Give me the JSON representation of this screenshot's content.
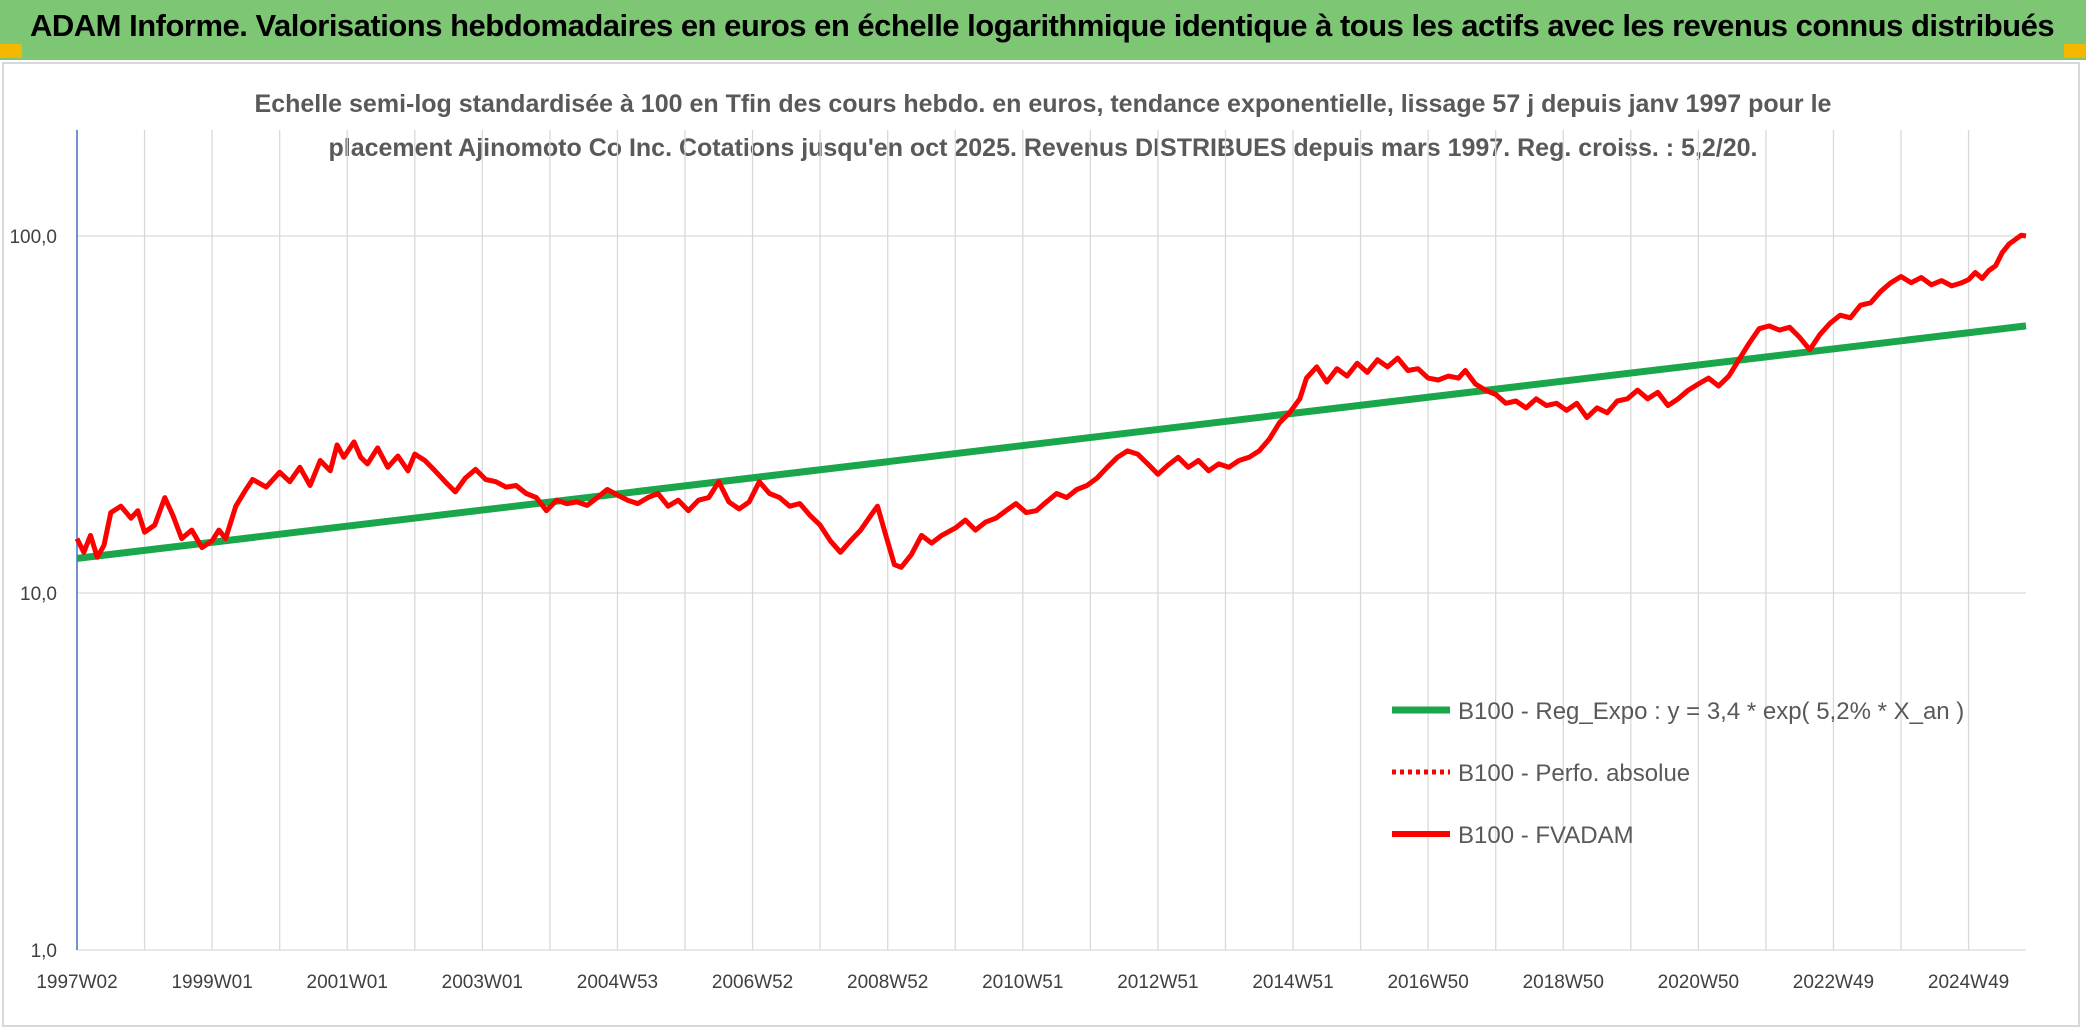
{
  "header": {
    "title": "ADAM Informe. Valorisations hebdomadaires en euros en échelle logarithmique identique à tous les actifs avec les revenus connus distribués"
  },
  "colors": {
    "header_bg": "#7dc774",
    "corner": "#f5b800",
    "regression": "#1aa64b",
    "fvadam": "#ff0000",
    "grid": "#d9d9d9"
  },
  "chart_data": {
    "type": "line",
    "y_scale": "log",
    "title_lines": [
      "Echelle semi-log standardisée à 100 en Tfin des cours hebdo. en euros, tendance exponentielle, lissage 57 j depuis janv 1997 pour le",
      "placement Ajinomoto Co Inc. Cotations jusqu'en oct 2025. Revenus DISTRIBUES depuis mars 1997. Reg. croiss. : 5,2/20."
    ],
    "ylim": [
      1,
      200
    ],
    "x_range_years": [
      1997.0,
      2025.85
    ],
    "y_ticks": [
      {
        "value": 1,
        "label": "1,0"
      },
      {
        "value": 10,
        "label": "10,0"
      },
      {
        "value": 100,
        "label": "100,0"
      }
    ],
    "x_ticks": [
      {
        "t": 1997.0,
        "label": "1997W02"
      },
      {
        "t": 1999.0,
        "label": "1999W01"
      },
      {
        "t": 2001.0,
        "label": "2001W01"
      },
      {
        "t": 2003.0,
        "label": "2003W01"
      },
      {
        "t": 2005.0,
        "label": "2004W53"
      },
      {
        "t": 2007.0,
        "label": "2006W52"
      },
      {
        "t": 2009.0,
        "label": "2008W52"
      },
      {
        "t": 2011.0,
        "label": "2010W51"
      },
      {
        "t": 2013.0,
        "label": "2012W51"
      },
      {
        "t": 2015.0,
        "label": "2014W51"
      },
      {
        "t": 2017.0,
        "label": "2016W50"
      },
      {
        "t": 2019.0,
        "label": "2018W50"
      },
      {
        "t": 2021.0,
        "label": "2020W50"
      },
      {
        "t": 2023.0,
        "label": "2022W49"
      },
      {
        "t": 2025.0,
        "label": "2024W49"
      }
    ],
    "minor_gridlines_years": [
      1997,
      1998,
      1999,
      2000,
      2001,
      2002,
      2003,
      2004,
      2005,
      2006,
      2007,
      2008,
      2009,
      2010,
      2011,
      2012,
      2013,
      2014,
      2015,
      2016,
      2017,
      2018,
      2019,
      2020,
      2021,
      2022,
      2023,
      2024,
      2025
    ],
    "series": [
      {
        "name": "B100 - Reg_Expo : y = 3,4 * exp( 5,2% *  X_an )",
        "style": "solid-thick",
        "color": "#1aa64b",
        "points": [
          [
            1997.0,
            12.5
          ],
          [
            2025.85,
            56.0
          ]
        ]
      },
      {
        "name": "B100 - Perfo. absolue",
        "style": "dotted",
        "color": "#ff0000",
        "points": []
      },
      {
        "name": "B100 - FVADAM",
        "style": "solid",
        "color": "#ff0000",
        "points": [
          [
            1997.0,
            14.2
          ],
          [
            1997.1,
            13.0
          ],
          [
            1997.2,
            14.5
          ],
          [
            1997.3,
            12.6
          ],
          [
            1997.4,
            13.6
          ],
          [
            1997.5,
            16.8
          ],
          [
            1997.65,
            17.5
          ],
          [
            1997.8,
            16.2
          ],
          [
            1997.9,
            17.0
          ],
          [
            1998.0,
            14.8
          ],
          [
            1998.15,
            15.5
          ],
          [
            1998.3,
            18.5
          ],
          [
            1998.42,
            16.5
          ],
          [
            1998.55,
            14.2
          ],
          [
            1998.7,
            15.0
          ],
          [
            1998.85,
            13.4
          ],
          [
            1999.0,
            14.0
          ],
          [
            1999.1,
            15.0
          ],
          [
            1999.2,
            14.2
          ],
          [
            1999.35,
            17.5
          ],
          [
            1999.5,
            19.5
          ],
          [
            1999.6,
            20.8
          ],
          [
            1999.8,
            19.8
          ],
          [
            2000.0,
            21.8
          ],
          [
            2000.15,
            20.5
          ],
          [
            2000.3,
            22.5
          ],
          [
            2000.45,
            20.0
          ],
          [
            2000.6,
            23.5
          ],
          [
            2000.75,
            22.0
          ],
          [
            2000.85,
            26.0
          ],
          [
            2000.95,
            24.0
          ],
          [
            2001.1,
            26.5
          ],
          [
            2001.2,
            24.0
          ],
          [
            2001.3,
            23.0
          ],
          [
            2001.45,
            25.5
          ],
          [
            2001.6,
            22.5
          ],
          [
            2001.75,
            24.2
          ],
          [
            2001.9,
            22.0
          ],
          [
            2002.0,
            24.5
          ],
          [
            2002.15,
            23.5
          ],
          [
            2002.3,
            22.0
          ],
          [
            2002.45,
            20.5
          ],
          [
            2002.6,
            19.2
          ],
          [
            2002.75,
            21.0
          ],
          [
            2002.9,
            22.2
          ],
          [
            2003.05,
            20.8
          ],
          [
            2003.2,
            20.5
          ],
          [
            2003.35,
            19.8
          ],
          [
            2003.5,
            20.0
          ],
          [
            2003.65,
            19.0
          ],
          [
            2003.8,
            18.5
          ],
          [
            2003.95,
            17.0
          ],
          [
            2004.1,
            18.2
          ],
          [
            2004.25,
            17.8
          ],
          [
            2004.4,
            18.0
          ],
          [
            2004.55,
            17.6
          ],
          [
            2004.7,
            18.5
          ],
          [
            2004.85,
            19.5
          ],
          [
            2005.0,
            18.8
          ],
          [
            2005.15,
            18.2
          ],
          [
            2005.3,
            17.8
          ],
          [
            2005.45,
            18.5
          ],
          [
            2005.6,
            19.0
          ],
          [
            2005.75,
            17.5
          ],
          [
            2005.9,
            18.2
          ],
          [
            2006.05,
            17.0
          ],
          [
            2006.2,
            18.2
          ],
          [
            2006.35,
            18.5
          ],
          [
            2006.5,
            20.5
          ],
          [
            2006.65,
            18.0
          ],
          [
            2006.8,
            17.2
          ],
          [
            2006.95,
            18.0
          ],
          [
            2007.1,
            20.5
          ],
          [
            2007.25,
            19.0
          ],
          [
            2007.4,
            18.5
          ],
          [
            2007.55,
            17.5
          ],
          [
            2007.7,
            17.8
          ],
          [
            2007.85,
            16.5
          ],
          [
            2008.0,
            15.5
          ],
          [
            2008.15,
            14.0
          ],
          [
            2008.3,
            13.0
          ],
          [
            2008.45,
            14.0
          ],
          [
            2008.6,
            15.0
          ],
          [
            2008.75,
            16.5
          ],
          [
            2008.85,
            17.5
          ],
          [
            2008.95,
            15.0
          ],
          [
            2009.1,
            12.0
          ],
          [
            2009.2,
            11.8
          ],
          [
            2009.35,
            12.8
          ],
          [
            2009.5,
            14.5
          ],
          [
            2009.65,
            13.8
          ],
          [
            2009.8,
            14.5
          ],
          [
            2010.0,
            15.2
          ],
          [
            2010.15,
            16.0
          ],
          [
            2010.3,
            15.0
          ],
          [
            2010.45,
            15.8
          ],
          [
            2010.6,
            16.2
          ],
          [
            2010.75,
            17.0
          ],
          [
            2010.9,
            17.8
          ],
          [
            2011.05,
            16.8
          ],
          [
            2011.2,
            17.0
          ],
          [
            2011.35,
            18.0
          ],
          [
            2011.5,
            19.0
          ],
          [
            2011.65,
            18.5
          ],
          [
            2011.8,
            19.5
          ],
          [
            2011.95,
            20.0
          ],
          [
            2012.1,
            21.0
          ],
          [
            2012.25,
            22.5
          ],
          [
            2012.4,
            24.0
          ],
          [
            2012.55,
            25.0
          ],
          [
            2012.7,
            24.5
          ],
          [
            2012.85,
            23.0
          ],
          [
            2013.0,
            21.5
          ],
          [
            2013.15,
            22.8
          ],
          [
            2013.3,
            24.0
          ],
          [
            2013.45,
            22.5
          ],
          [
            2013.6,
            23.5
          ],
          [
            2013.75,
            22.0
          ],
          [
            2013.9,
            23.0
          ],
          [
            2014.05,
            22.5
          ],
          [
            2014.2,
            23.5
          ],
          [
            2014.35,
            24.0
          ],
          [
            2014.5,
            25.0
          ],
          [
            2014.65,
            27.0
          ],
          [
            2014.8,
            30.0
          ],
          [
            2014.95,
            32.0
          ],
          [
            2015.1,
            35.0
          ],
          [
            2015.2,
            40.0
          ],
          [
            2015.35,
            43.0
          ],
          [
            2015.5,
            39.0
          ],
          [
            2015.65,
            42.5
          ],
          [
            2015.8,
            40.5
          ],
          [
            2015.95,
            44.0
          ],
          [
            2016.1,
            41.5
          ],
          [
            2016.25,
            45.0
          ],
          [
            2016.4,
            43.0
          ],
          [
            2016.55,
            45.5
          ],
          [
            2016.7,
            42.0
          ],
          [
            2016.85,
            42.5
          ],
          [
            2017.0,
            40.0
          ],
          [
            2017.15,
            39.5
          ],
          [
            2017.3,
            40.5
          ],
          [
            2017.45,
            40.0
          ],
          [
            2017.55,
            42.0
          ],
          [
            2017.7,
            38.5
          ],
          [
            2017.85,
            37.0
          ],
          [
            2018.0,
            36.0
          ],
          [
            2018.15,
            34.0
          ],
          [
            2018.3,
            34.5
          ],
          [
            2018.45,
            33.0
          ],
          [
            2018.6,
            35.0
          ],
          [
            2018.75,
            33.5
          ],
          [
            2018.9,
            34.0
          ],
          [
            2019.05,
            32.5
          ],
          [
            2019.2,
            34.0
          ],
          [
            2019.35,
            31.0
          ],
          [
            2019.5,
            33.0
          ],
          [
            2019.65,
            32.0
          ],
          [
            2019.8,
            34.5
          ],
          [
            2019.95,
            35.0
          ],
          [
            2020.1,
            37.0
          ],
          [
            2020.25,
            35.0
          ],
          [
            2020.4,
            36.5
          ],
          [
            2020.55,
            33.5
          ],
          [
            2020.7,
            35.0
          ],
          [
            2020.85,
            37.0
          ],
          [
            2021.0,
            38.5
          ],
          [
            2021.15,
            40.0
          ],
          [
            2021.3,
            38.0
          ],
          [
            2021.45,
            40.5
          ],
          [
            2021.6,
            45.0
          ],
          [
            2021.75,
            50.0
          ],
          [
            2021.9,
            55.0
          ],
          [
            2022.05,
            56.0
          ],
          [
            2022.2,
            54.5
          ],
          [
            2022.35,
            55.5
          ],
          [
            2022.5,
            52.0
          ],
          [
            2022.65,
            48.0
          ],
          [
            2022.8,
            53.0
          ],
          [
            2022.95,
            57.0
          ],
          [
            2023.1,
            60.0
          ],
          [
            2023.25,
            59.0
          ],
          [
            2023.4,
            64.0
          ],
          [
            2023.55,
            65.0
          ],
          [
            2023.7,
            70.0
          ],
          [
            2023.85,
            74.0
          ],
          [
            2024.0,
            77.0
          ],
          [
            2024.15,
            74.0
          ],
          [
            2024.3,
            76.5
          ],
          [
            2024.45,
            73.0
          ],
          [
            2024.6,
            75.0
          ],
          [
            2024.75,
            72.5
          ],
          [
            2024.9,
            74.0
          ],
          [
            2025.0,
            75.5
          ],
          [
            2025.1,
            79.0
          ],
          [
            2025.2,
            76.0
          ],
          [
            2025.3,
            80.0
          ],
          [
            2025.4,
            82.5
          ],
          [
            2025.5,
            90.0
          ],
          [
            2025.6,
            95.0
          ],
          [
            2025.7,
            98.0
          ],
          [
            2025.78,
            100.5
          ],
          [
            2025.85,
            100.0
          ]
        ]
      }
    ]
  }
}
